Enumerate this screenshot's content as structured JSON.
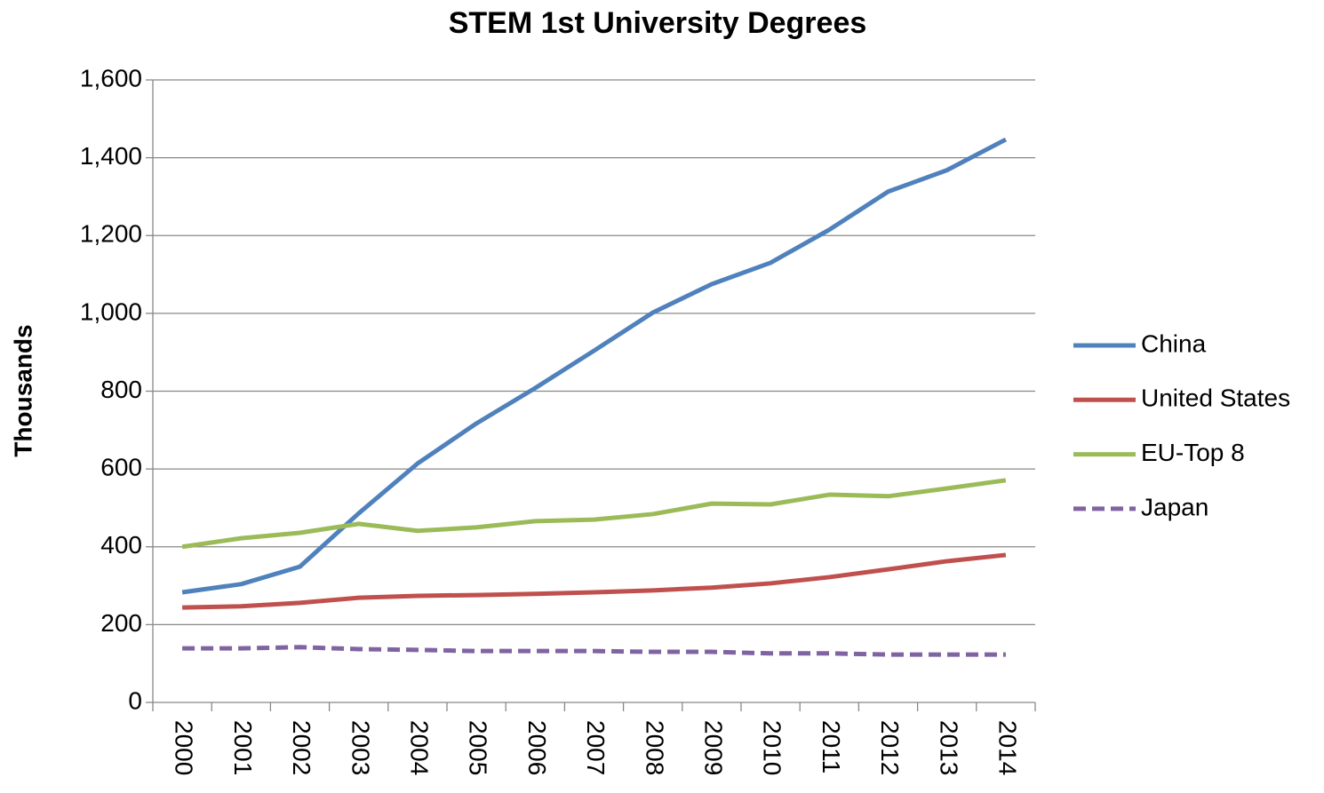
{
  "chart_data": {
    "type": "line",
    "title": "STEM 1st University Degrees",
    "y_label": "Thousands",
    "categories": [
      "2000",
      "2001",
      "2002",
      "2003",
      "2004",
      "2005",
      "2006",
      "2007",
      "2008",
      "2009",
      "2010",
      "2011",
      "2012",
      "2013",
      "2014"
    ],
    "series": [
      {
        "name": "China",
        "color": "#4f81bd",
        "linestyle": "solid",
        "values": [
          283,
          304,
          349,
          486,
          614,
          717,
          808,
          904,
          1002,
          1075,
          1130,
          1215,
          1313,
          1368,
          1447
        ]
      },
      {
        "name": "United States",
        "color": "#c0504d",
        "linestyle": "solid",
        "values": [
          244,
          247,
          256,
          269,
          274,
          276,
          279,
          283,
          288,
          295,
          306,
          322,
          342,
          363,
          379
        ]
      },
      {
        "name": "EU-Top 8",
        "color": "#9bbb59",
        "linestyle": "solid",
        "values": [
          400,
          422,
          436,
          459,
          441,
          450,
          466,
          470,
          484,
          511,
          509,
          534,
          530,
          550,
          571
        ]
      },
      {
        "name": "Japan",
        "color": "#8064a2",
        "linestyle": "dashed",
        "values": [
          139,
          139,
          142,
          137,
          135,
          132,
          132,
          132,
          130,
          130,
          126,
          126,
          123,
          123,
          123
        ]
      }
    ],
    "ylim": [
      0,
      1600
    ],
    "yticks": [
      0,
      200,
      400,
      600,
      800,
      {
        "value": 1000,
        "label": "1,000"
      },
      {
        "value": 1200,
        "label": "1,200"
      },
      {
        "value": 1400,
        "label": "1,400"
      },
      {
        "value": 1600,
        "label": "1,600"
      }
    ],
    "grid": true,
    "legend": "right"
  }
}
